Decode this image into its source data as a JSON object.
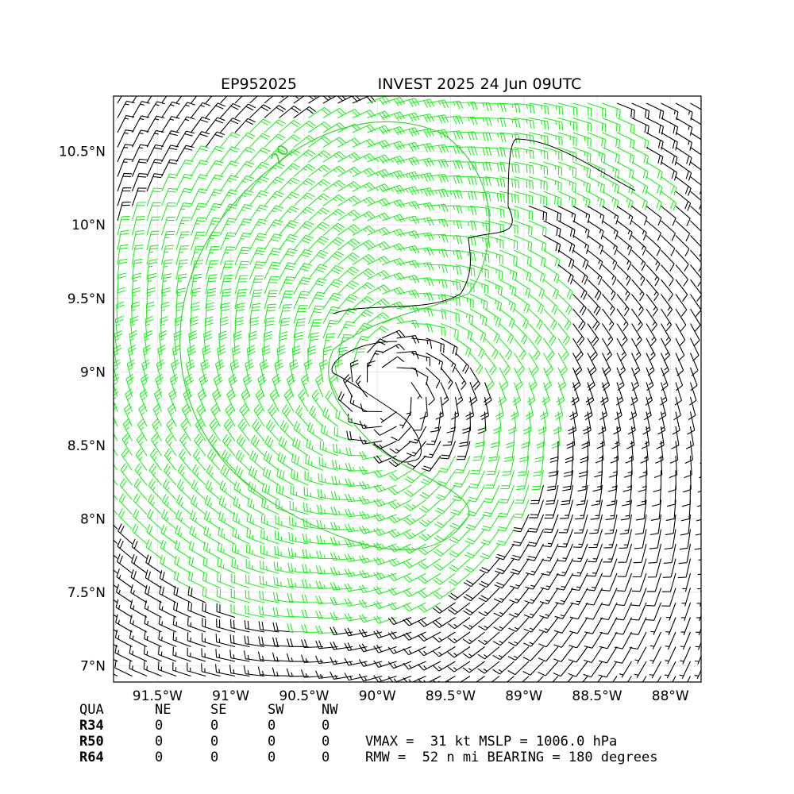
{
  "header": {
    "storm_id": "EP952025",
    "title": "INVEST 2025 24 Jun 09UTC"
  },
  "map": {
    "xlim": [
      -91.8,
      -87.79
    ],
    "ylim": [
      6.89,
      10.876
    ],
    "xticks": [
      {
        "value": -91.5,
        "label": "91.5°W"
      },
      {
        "value": -91,
        "label": "91°W"
      },
      {
        "value": -90.5,
        "label": "90.5°W"
      },
      {
        "value": -90,
        "label": "90°W"
      },
      {
        "value": -89.5,
        "label": "89.5°W"
      },
      {
        "value": -89,
        "label": "89°W"
      },
      {
        "value": -88.5,
        "label": "88.5°W"
      },
      {
        "value": -88,
        "label": "88°W"
      }
    ],
    "yticks": [
      {
        "value": 7,
        "label": "7°N"
      },
      {
        "value": 7.5,
        "label": "7.5°N"
      },
      {
        "value": 8,
        "label": "8°N"
      },
      {
        "value": 8.5,
        "label": "8.5°N"
      },
      {
        "value": 9,
        "label": "9°N"
      },
      {
        "value": 9.5,
        "label": "9.5°N"
      },
      {
        "value": 10,
        "label": "10°N"
      },
      {
        "value": 10.5,
        "label": "10.5°N"
      }
    ],
    "contour_label": "20"
  },
  "table": {
    "header": [
      "QUA",
      "NE",
      "SE",
      "SW",
      "NW"
    ],
    "rows": [
      [
        "R34",
        "0",
        "0",
        "0",
        "0"
      ],
      [
        "R50",
        "0",
        "0",
        "0",
        "0"
      ],
      [
        "R64",
        "0",
        "0",
        "0",
        "0"
      ]
    ]
  },
  "info": [
    "VMAX =  31 kt MSLP = 1006.0 hPa",
    "RMW =  52 n mi BEARING = 180 degrees"
  ]
}
